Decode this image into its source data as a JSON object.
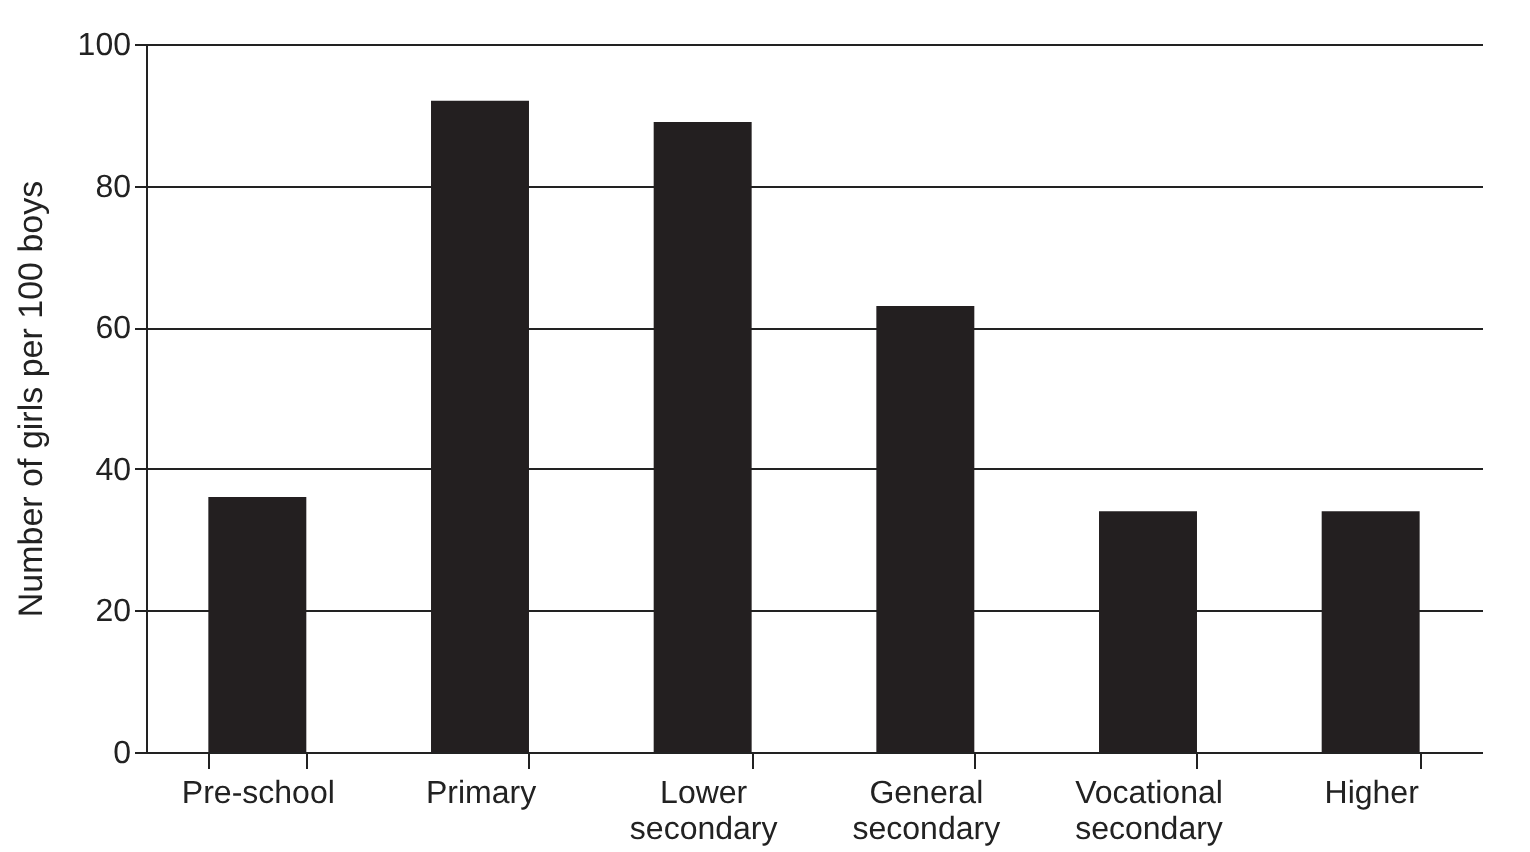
{
  "chart_data": {
    "type": "bar",
    "ylabel": "Number of girls per 100 boys",
    "categories": [
      "Pre-school",
      "Primary",
      "Lower secondary",
      "General secondary",
      "Vocational secondary",
      "Higher"
    ],
    "values": [
      36,
      92,
      89,
      63,
      34,
      34
    ],
    "color": "#231f20",
    "ylim": [
      0,
      100
    ],
    "yticks": [
      0,
      20,
      40,
      60,
      80,
      100
    ],
    "grid": "y"
  }
}
